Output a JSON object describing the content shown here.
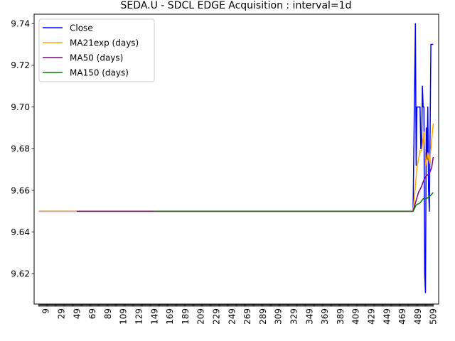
{
  "chart_data": {
    "type": "line",
    "title": "SEDA.U - SDCL EDGE Acquisition : interval=1d",
    "xlabel": "",
    "ylabel": "",
    "xlim": [
      -6,
      516
    ],
    "ylim": [
      9.6055,
      9.7445
    ],
    "yticks": [
      9.62,
      9.64,
      9.66,
      9.68,
      9.7,
      9.72,
      9.74
    ],
    "ytick_labels": [
      "9.62",
      "9.64",
      "9.66",
      "9.68",
      "9.70",
      "9.72",
      "9.74"
    ],
    "xticks": [
      9,
      29,
      49,
      69,
      89,
      109,
      129,
      149,
      169,
      189,
      209,
      229,
      249,
      269,
      289,
      309,
      329,
      349,
      369,
      389,
      409,
      429,
      449,
      469,
      489,
      509
    ],
    "xtick_labels": [
      "9",
      "29",
      "49",
      "69",
      "89",
      "109",
      "129",
      "149",
      "169",
      "189",
      "209",
      "229",
      "249",
      "269",
      "289",
      "309",
      "329",
      "349",
      "369",
      "389",
      "409",
      "429",
      "449",
      "469",
      "489",
      "509"
    ],
    "grid": false,
    "legend_position": "upper left",
    "series": [
      {
        "name": "Close",
        "color": "#0000ff",
        "points": [
          [
            0,
            9.65
          ],
          [
            483,
            9.65
          ],
          [
            486,
            9.74
          ],
          [
            487,
            9.672
          ],
          [
            488,
            9.7
          ],
          [
            492,
            9.7
          ],
          [
            493,
            9.68
          ],
          [
            494,
            9.68
          ],
          [
            495,
            9.71
          ],
          [
            496,
            9.7
          ],
          [
            497,
            9.7
          ],
          [
            498,
            9.62
          ],
          [
            499,
            9.611
          ],
          [
            500,
            9.69
          ],
          [
            501,
            9.675
          ],
          [
            502,
            9.7
          ],
          [
            503,
            9.66
          ],
          [
            504,
            9.65
          ],
          [
            506,
            9.73
          ],
          [
            509,
            9.73
          ]
        ]
      },
      {
        "name": "MA21exp (days)",
        "color": "#ffa500",
        "points": [
          [
            0,
            9.65
          ],
          [
            483,
            9.65
          ],
          [
            486,
            9.662
          ],
          [
            488,
            9.671
          ],
          [
            492,
            9.679
          ],
          [
            494,
            9.679
          ],
          [
            496,
            9.685
          ],
          [
            497,
            9.688
          ],
          [
            499,
            9.672
          ],
          [
            500,
            9.674
          ],
          [
            501,
            9.676
          ],
          [
            502,
            9.678
          ],
          [
            504,
            9.673
          ],
          [
            506,
            9.68
          ],
          [
            509,
            9.692
          ]
        ]
      },
      {
        "name": "MA50 (days)",
        "color": "#800080",
        "points": [
          [
            49,
            9.65
          ],
          [
            483,
            9.65
          ],
          [
            486,
            9.654
          ],
          [
            490,
            9.659
          ],
          [
            494,
            9.662
          ],
          [
            497,
            9.665
          ],
          [
            500,
            9.667
          ],
          [
            504,
            9.668
          ],
          [
            507,
            9.671
          ],
          [
            509,
            9.676
          ]
        ]
      },
      {
        "name": "MA150 (days)",
        "color": "#008000",
        "points": [
          [
            149,
            9.65
          ],
          [
            483,
            9.65
          ],
          [
            487,
            9.653
          ],
          [
            492,
            9.654
          ],
          [
            496,
            9.656
          ],
          [
            500,
            9.656
          ],
          [
            504,
            9.657
          ],
          [
            509,
            9.659
          ]
        ]
      }
    ]
  }
}
